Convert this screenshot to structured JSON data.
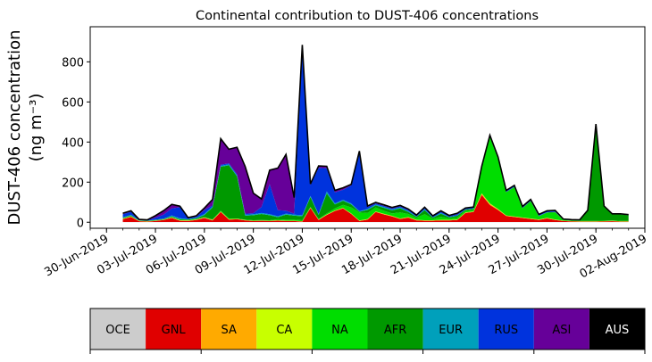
{
  "chart_data": {
    "type": "area",
    "stacked": true,
    "title": "Continental contribution to DUST-406 concentrations",
    "ylabel": "DUST-406 concentration",
    "ylabel_unit": "(ng m⁻³)",
    "ylim": [
      -30,
      975
    ],
    "yticks": [
      0,
      200,
      400,
      600,
      800
    ],
    "xlim": [
      "2019-06-29",
      "2019-08-02"
    ],
    "xticks": [
      "30-Jun-2019",
      "03-Jul-2019",
      "06-Jul-2019",
      "09-Jul-2019",
      "12-Jul-2019",
      "15-Jul-2019",
      "18-Jul-2019",
      "21-Jul-2019",
      "24-Jul-2019",
      "27-Jul-2019",
      "30-Jul-2019",
      "02-Aug-2019"
    ],
    "x": [
      "2019-07-01",
      "2019-07-01T12",
      "2019-07-02",
      "2019-07-02T12",
      "2019-07-03",
      "2019-07-03T12",
      "2019-07-04",
      "2019-07-04T12",
      "2019-07-05",
      "2019-07-05T12",
      "2019-07-06",
      "2019-07-06T12",
      "2019-07-07",
      "2019-07-07T12",
      "2019-07-08",
      "2019-07-08T12",
      "2019-07-09",
      "2019-07-09T12",
      "2019-07-10",
      "2019-07-10T12",
      "2019-07-11",
      "2019-07-11T12",
      "2019-07-12",
      "2019-07-12T12",
      "2019-07-13",
      "2019-07-13T12",
      "2019-07-14",
      "2019-07-14T12",
      "2019-07-15",
      "2019-07-15T12",
      "2019-07-16",
      "2019-07-16T12",
      "2019-07-17",
      "2019-07-17T12",
      "2019-07-18",
      "2019-07-18T12",
      "2019-07-19",
      "2019-07-19T12",
      "2019-07-20",
      "2019-07-20T12",
      "2019-07-21",
      "2019-07-21T12",
      "2019-07-22",
      "2019-07-22T12",
      "2019-07-23",
      "2019-07-23T12",
      "2019-07-24",
      "2019-07-24T12",
      "2019-07-25",
      "2019-07-25T12",
      "2019-07-26",
      "2019-07-26T12",
      "2019-07-27",
      "2019-07-27T12",
      "2019-07-28",
      "2019-07-28T12",
      "2019-07-29",
      "2019-07-29T12",
      "2019-07-30",
      "2019-07-30T12",
      "2019-07-31",
      "2019-07-31T12",
      "2019-08-01"
    ],
    "series": [
      {
        "name": "OCE",
        "color": "#cccccc",
        "values": [
          1,
          1,
          1,
          1,
          1,
          1,
          1,
          1,
          1,
          1,
          1,
          1,
          1,
          1,
          1,
          1,
          1,
          1,
          1,
          1,
          1,
          1,
          1,
          1,
          1,
          1,
          1,
          1,
          1,
          1,
          1,
          1,
          1,
          1,
          1,
          1,
          1,
          1,
          1,
          1,
          1,
          1,
          1,
          1,
          1,
          1,
          1,
          1,
          1,
          1,
          1,
          1,
          1,
          1,
          1,
          1,
          1,
          1,
          1,
          1,
          1,
          1,
          1
        ]
      },
      {
        "name": "GNL",
        "color": "#e00000",
        "values": [
          14,
          25,
          4,
          2,
          5,
          10,
          20,
          6,
          5,
          10,
          20,
          8,
          50,
          12,
          14,
          8,
          5,
          6,
          5,
          7,
          5,
          5,
          2,
          70,
          10,
          35,
          55,
          68,
          40,
          5,
          12,
          50,
          38,
          28,
          15,
          22,
          8,
          6,
          6,
          8,
          8,
          10,
          45,
          50,
          135,
          85,
          60,
          30,
          25,
          20,
          15,
          10,
          18,
          10,
          5,
          3,
          2,
          2,
          2,
          3,
          4,
          2,
          2
        ]
      },
      {
        "name": "SA",
        "color": "#ffaa00",
        "values": [
          2,
          2,
          1,
          1,
          1,
          1,
          2,
          2,
          2,
          2,
          2,
          2,
          2,
          2,
          1,
          1,
          1,
          1,
          1,
          1,
          1,
          1,
          1,
          2,
          2,
          2,
          2,
          2,
          2,
          2,
          2,
          2,
          2,
          2,
          2,
          2,
          2,
          2,
          2,
          2,
          2,
          2,
          2,
          2,
          5,
          5,
          3,
          2,
          2,
          2,
          2,
          2,
          2,
          2,
          1,
          1,
          1,
          1,
          1,
          1,
          1,
          1,
          1
        ]
      },
      {
        "name": "CA",
        "color": "#c8ff00",
        "values": [
          1,
          1,
          1,
          1,
          1,
          1,
          1,
          1,
          1,
          1,
          1,
          1,
          1,
          1,
          1,
          1,
          1,
          1,
          1,
          1,
          1,
          1,
          1,
          1,
          1,
          1,
          1,
          1,
          1,
          1,
          1,
          1,
          1,
          1,
          1,
          1,
          1,
          1,
          1,
          1,
          1,
          1,
          1,
          1,
          3,
          3,
          2,
          1,
          1,
          1,
          1,
          1,
          1,
          1,
          1,
          1,
          1,
          1,
          1,
          1,
          1,
          1,
          1
        ]
      },
      {
        "name": "NA",
        "color": "#00dd00",
        "values": [
          2,
          2,
          1,
          1,
          1,
          1,
          2,
          2,
          2,
          2,
          2,
          2,
          3,
          3,
          2,
          2,
          2,
          2,
          2,
          5,
          5,
          5,
          5,
          2,
          2,
          5,
          10,
          15,
          30,
          40,
          30,
          20,
          15,
          12,
          30,
          15,
          10,
          30,
          8,
          15,
          8,
          10,
          8,
          8,
          125,
          330,
          250,
          115,
          145,
          45,
          85,
          15,
          25,
          35,
          3,
          2,
          2,
          2,
          2,
          2,
          2,
          2,
          2
        ]
      },
      {
        "name": "AFR",
        "color": "#009900",
        "values": [
          2,
          3,
          1,
          1,
          2,
          2,
          3,
          3,
          3,
          3,
          10,
          60,
          220,
          265,
          210,
          20,
          25,
          30,
          25,
          10,
          25,
          20,
          20,
          50,
          20,
          100,
          20,
          20,
          15,
          3,
          15,
          10,
          15,
          15,
          20,
          10,
          5,
          20,
          5,
          15,
          5,
          8,
          5,
          5,
          2,
          2,
          2,
          2,
          2,
          2,
          2,
          2,
          2,
          2,
          2,
          2,
          2,
          50,
          480,
          70,
          30,
          32,
          28
        ]
      },
      {
        "name": "EUR",
        "color": "#00a0bb",
        "values": [
          3,
          3,
          1,
          1,
          2,
          2,
          5,
          5,
          2,
          3,
          5,
          5,
          5,
          5,
          5,
          5,
          5,
          5,
          5,
          5,
          5,
          5,
          5,
          5,
          5,
          10,
          5,
          5,
          5,
          3,
          5,
          5,
          5,
          5,
          5,
          5,
          2,
          5,
          2,
          5,
          2,
          3,
          2,
          2,
          1,
          1,
          1,
          1,
          1,
          1,
          1,
          1,
          1,
          1,
          1,
          1,
          1,
          1,
          1,
          1,
          1,
          1,
          1
        ]
      },
      {
        "name": "RUS",
        "color": "#0033dd",
        "values": [
          15,
          15,
          2,
          2,
          10,
          20,
          35,
          55,
          5,
          5,
          20,
          5,
          5,
          5,
          5,
          5,
          5,
          30,
          150,
          30,
          15,
          5,
          840,
          55,
          230,
          115,
          55,
          50,
          90,
          290,
          10,
          5,
          5,
          5,
          5,
          5,
          5,
          5,
          5,
          5,
          5,
          5,
          5,
          5,
          5,
          5,
          5,
          5,
          5,
          5,
          5,
          5,
          5,
          5,
          1,
          1,
          1,
          1,
          1,
          1,
          1,
          1,
          1
        ]
      },
      {
        "name": "ASI",
        "color": "#660099",
        "values": [
          5,
          5,
          2,
          2,
          10,
          20,
          20,
          5,
          2,
          5,
          10,
          30,
          130,
          70,
          135,
          235,
          100,
          40,
          70,
          210,
          280,
          80,
          10,
          5,
          10,
          10,
          10,
          10,
          5,
          10,
          5,
          5,
          5,
          5,
          5,
          5,
          2,
          5,
          2,
          5,
          2,
          5,
          2,
          2,
          2,
          2,
          2,
          2,
          2,
          2,
          2,
          2,
          2,
          2,
          1,
          1,
          1,
          1,
          1,
          1,
          1,
          1,
          1
        ]
      },
      {
        "name": "AUS",
        "color": "#000000",
        "values": [
          0,
          0,
          0,
          0,
          0,
          0,
          0,
          0,
          0,
          0,
          0,
          0,
          0,
          0,
          0,
          0,
          0,
          0,
          0,
          0,
          0,
          0,
          0,
          0,
          0,
          0,
          0,
          0,
          0,
          0,
          0,
          0,
          0,
          0,
          0,
          0,
          0,
          0,
          0,
          0,
          0,
          0,
          0,
          0,
          0,
          0,
          0,
          0,
          0,
          0,
          0,
          0,
          0,
          0,
          0,
          0,
          0,
          0,
          0,
          0,
          0,
          0,
          0
        ]
      }
    ]
  }
}
